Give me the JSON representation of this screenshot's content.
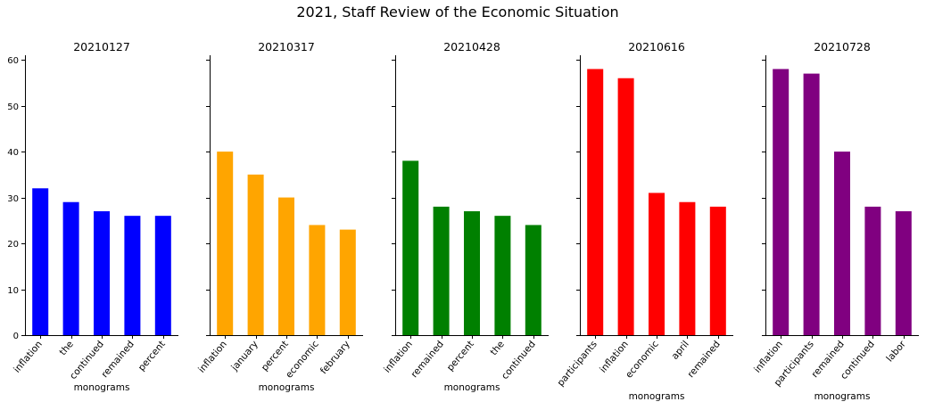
{
  "figure": {
    "title": "2021, Staff Review of the Economic Situation"
  },
  "chart_data": [
    {
      "type": "bar",
      "title": "20210127",
      "xlabel": "monograms",
      "ylabel": "",
      "color": "#0000ff",
      "categories": [
        "inflation",
        "the",
        "continued",
        "remained",
        "percent"
      ],
      "values": [
        32,
        29,
        27,
        26,
        26
      ],
      "ylim": [
        0,
        61
      ],
      "yticks": [
        0,
        10,
        20,
        30,
        40,
        50,
        60
      ],
      "show_ytick_labels": true,
      "grid": false
    },
    {
      "type": "bar",
      "title": "20210317",
      "xlabel": "monograms",
      "ylabel": "",
      "color": "#ffa500",
      "categories": [
        "inflation",
        "january",
        "percent",
        "economic",
        "february"
      ],
      "values": [
        40,
        35,
        30,
        24,
        23
      ],
      "ylim": [
        0,
        61
      ],
      "yticks": [
        0,
        10,
        20,
        30,
        40,
        50,
        60
      ],
      "show_ytick_labels": false,
      "grid": false
    },
    {
      "type": "bar",
      "title": "20210428",
      "xlabel": "monograms",
      "ylabel": "",
      "color": "#008000",
      "categories": [
        "inflation",
        "remained",
        "percent",
        "the",
        "continued"
      ],
      "values": [
        38,
        28,
        27,
        26,
        24
      ],
      "ylim": [
        0,
        61
      ],
      "yticks": [
        0,
        10,
        20,
        30,
        40,
        50,
        60
      ],
      "show_ytick_labels": false,
      "grid": false
    },
    {
      "type": "bar",
      "title": "20210616",
      "xlabel": "monograms",
      "ylabel": "",
      "color": "#ff0000",
      "categories": [
        "participants",
        "inflation",
        "economic",
        "april",
        "remained"
      ],
      "values": [
        58,
        56,
        31,
        29,
        28
      ],
      "ylim": [
        0,
        61
      ],
      "yticks": [
        0,
        10,
        20,
        30,
        40,
        50,
        60
      ],
      "show_ytick_labels": false,
      "grid": false
    },
    {
      "type": "bar",
      "title": "20210728",
      "xlabel": "monograms",
      "ylabel": "",
      "color": "#800080",
      "categories": [
        "inflation",
        "participants",
        "remained",
        "continued",
        "labor"
      ],
      "values": [
        58,
        57,
        40,
        28,
        27
      ],
      "ylim": [
        0,
        61
      ],
      "yticks": [
        0,
        10,
        20,
        30,
        40,
        50,
        60
      ],
      "show_ytick_labels": false,
      "grid": false
    }
  ]
}
